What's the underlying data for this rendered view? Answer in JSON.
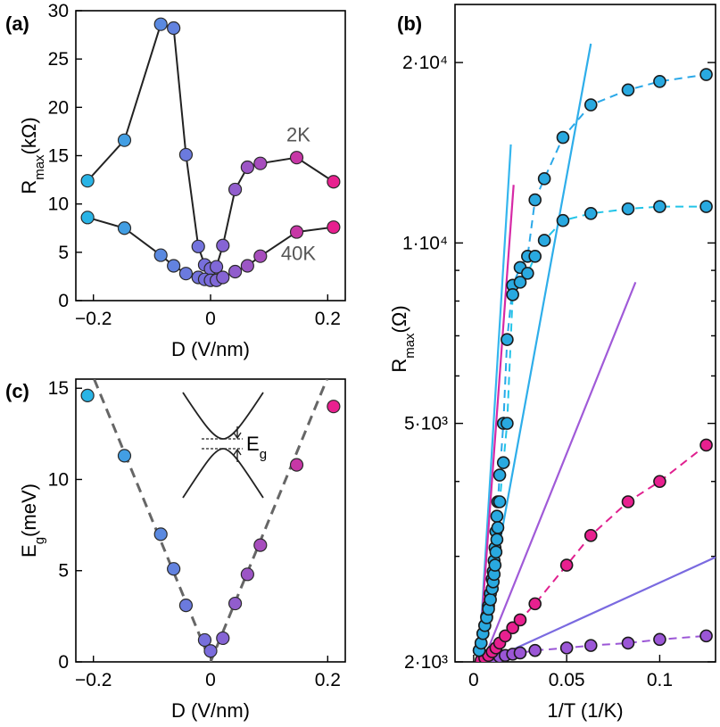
{
  "chart_data": [
    {
      "panel_label": "(a)",
      "type": "line",
      "xlabel": "D (V/nm)",
      "ylabel": "R",
      "ylabel_sub": "max",
      "ylabel_unit": "(kΩ)",
      "xlim": [
        -0.23,
        0.23
      ],
      "ylim": [
        0,
        30
      ],
      "xticks": [
        -0.2,
        0,
        0.2
      ],
      "xtick_labels": [
        "−0.2",
        "0",
        "0.2"
      ],
      "yticks": [
        0,
        5,
        10,
        15,
        20,
        25,
        30
      ],
      "ytick_labels": [
        "0",
        "5",
        "10",
        "15",
        "20",
        "25",
        "30"
      ],
      "annotations": [
        {
          "text": "2K",
          "x": 0.15,
          "y": 16.5
        },
        {
          "text": "40K",
          "x": 0.15,
          "y": 4.2
        }
      ],
      "series": [
        {
          "x": [
            -0.21,
            -0.147,
            -0.085,
            -0.063,
            -0.042,
            -0.021,
            -0.01,
            0,
            0.01,
            0.021,
            0.042,
            0.063,
            0.085,
            0.147,
            0.21
          ],
          "y": [
            12.4,
            16.6,
            28.6,
            28.2,
            15.1,
            5.6,
            3.7,
            3.3,
            3.5,
            5.7,
            11.5,
            13.8,
            14.2,
            14.8,
            12.3
          ]
        },
        {
          "x": [
            -0.21,
            -0.147,
            -0.085,
            -0.063,
            -0.042,
            -0.021,
            -0.01,
            0,
            0.01,
            0.021,
            0.042,
            0.063,
            0.085,
            0.147,
            0.21
          ],
          "y": [
            8.6,
            7.5,
            4.7,
            3.6,
            2.8,
            2.4,
            2.2,
            2.1,
            2.1,
            2.4,
            3.0,
            3.6,
            4.6,
            7.1,
            7.6
          ]
        }
      ]
    },
    {
      "panel_label": "(c)",
      "type": "scatter",
      "xlabel": "D (V/nm)",
      "ylabel": "E",
      "ylabel_sub": "g",
      "ylabel_unit": "(meV)",
      "xlim": [
        -0.23,
        0.23
      ],
      "ylim": [
        0,
        15.5
      ],
      "xticks": [
        -0.2,
        0,
        0.2
      ],
      "xtick_labels": [
        "−0.2",
        "0",
        "0.2"
      ],
      "yticks": [
        0,
        5,
        10,
        15
      ],
      "ytick_labels": [
        "0",
        "5",
        "10",
        "15"
      ],
      "inset_label": "E",
      "inset_label_sub": "g",
      "points": {
        "x": [
          -0.21,
          -0.147,
          -0.085,
          -0.063,
          -0.042,
          -0.01,
          0,
          0.021,
          0.042,
          0.063,
          0.085,
          0.147,
          0.21
        ],
        "y": [
          14.6,
          11.3,
          7.0,
          5.1,
          3.1,
          1.2,
          0.6,
          1.3,
          3.2,
          4.8,
          6.4,
          10.8,
          14.0
        ]
      },
      "fit_line": {
        "slope_abs": 78,
        "intercept": 0
      }
    },
    {
      "panel_label": "(b)",
      "type": "scatter",
      "xlabel": "1/T (1/K)",
      "ylabel": "R",
      "ylabel_sub": "max",
      "ylabel_unit": "(Ω)",
      "yscale": "log",
      "xlim": [
        -0.01,
        0.13
      ],
      "ylim": [
        2000,
        25000
      ],
      "xticks": [
        0,
        0.05,
        0.1
      ],
      "xtick_labels": [
        "0",
        "0.05",
        "0.1"
      ],
      "yticks": [
        2000,
        5000,
        10000,
        20000
      ],
      "ytick_labels": [
        "2·10³",
        "5·10³",
        "1·10⁴",
        "2·10⁴"
      ],
      "series": [
        {
          "x": [
            0.003,
            0.004,
            0.005,
            0.006,
            0.007,
            0.008,
            0.009,
            0.01,
            0.0105,
            0.011,
            0.0115,
            0.012,
            0.0125,
            0.013,
            0.014,
            0.016,
            0.018,
            0.021,
            0.025,
            0.029,
            0.033,
            0.038,
            0.048,
            0.063,
            0.083,
            0.1,
            0.125
          ],
          "y": [
            2090,
            2150,
            2230,
            2300,
            2380,
            2480,
            2600,
            2750,
            2830,
            2950,
            3100,
            3300,
            3500,
            3700,
            4100,
            5000,
            6900,
            8500,
            9100,
            9500,
            11800,
            12800,
            15000,
            17000,
            18000,
            18600,
            19100
          ]
        },
        {
          "x": [
            0.003,
            0.004,
            0.005,
            0.006,
            0.007,
            0.008,
            0.009,
            0.01,
            0.0105,
            0.011,
            0.0115,
            0.012,
            0.0125,
            0.013,
            0.014,
            0.016,
            0.018,
            0.021,
            0.025,
            0.029,
            0.033,
            0.038,
            0.048,
            0.063,
            0.083,
            0.1,
            0.125
          ],
          "y": [
            2090,
            2150,
            2230,
            2300,
            2370,
            2450,
            2540,
            2650,
            2720,
            2800,
            2900,
            3050,
            3200,
            3350,
            3700,
            4300,
            5000,
            8200,
            8600,
            8900,
            9500,
            10100,
            10900,
            11200,
            11400,
            11500,
            11500
          ]
        },
        {
          "x": [
            0.004,
            0.006,
            0.008,
            0.01,
            0.012,
            0.014,
            0.017,
            0.021,
            0.025,
            0.033,
            0.05,
            0.063,
            0.083,
            0.1,
            0.125
          ],
          "y": [
            2010,
            2030,
            2050,
            2080,
            2110,
            2150,
            2210,
            2280,
            2350,
            2500,
            2900,
            3250,
            3700,
            4000,
            4600
          ]
        },
        {
          "x": [
            0.005,
            0.007,
            0.01,
            0.014,
            0.017,
            0.021,
            0.025,
            0.033,
            0.05,
            0.063,
            0.083,
            0.1,
            0.125
          ],
          "y": [
            2010,
            2020,
            2030,
            2040,
            2050,
            2060,
            2070,
            2090,
            2110,
            2130,
            2150,
            2180,
            2210
          ]
        }
      ]
    }
  ],
  "colors": {
    "cyan": "#29a9e0",
    "blue": "#5b7fe6",
    "purple": "#9b56d6",
    "magenta": "#e8208f",
    "fit_cyan": "#2eaeea",
    "fit_blue": "#3aa0e6",
    "fit_magenta": "#d62aa6",
    "fit_purple": "#a05ad8",
    "dash_gray": "#666666"
  }
}
